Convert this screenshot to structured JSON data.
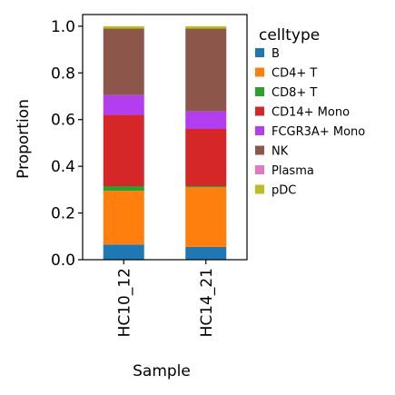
{
  "chart_data": {
    "type": "bar",
    "stacked": true,
    "categories": [
      "HC10_12",
      "HC14_21"
    ],
    "xlabel": "Sample",
    "ylabel": "Proportion",
    "ylim": [
      0,
      1.05
    ],
    "yticks": [
      "0.0",
      "0.2",
      "0.4",
      "0.6",
      "0.8",
      "1.0"
    ],
    "ytick_values": [
      0,
      0.2,
      0.4,
      0.6,
      0.8,
      1.0
    ],
    "grid": false,
    "legend": {
      "title": "celltype",
      "placement": "right"
    },
    "series": [
      {
        "name": "B",
        "color": "#1f77b4",
        "values": [
          0.065,
          0.055
        ]
      },
      {
        "name": "CD4+ T",
        "color": "#ff7f0e",
        "values": [
          0.23,
          0.255
        ]
      },
      {
        "name": "CD8+ T",
        "color": "#2ca02c",
        "values": [
          0.02,
          0.005
        ]
      },
      {
        "name": "CD14+ Mono",
        "color": "#d62728",
        "values": [
          0.305,
          0.245
        ]
      },
      {
        "name": "FCGR3A+ Mono",
        "color": "#b23ef0",
        "values": [
          0.085,
          0.075
        ]
      },
      {
        "name": "NK",
        "color": "#8c564b",
        "values": [
          0.285,
          0.355
        ]
      },
      {
        "name": "Plasma",
        "color": "#e377c2",
        "values": [
          0.0,
          0.0
        ]
      },
      {
        "name": "pDC",
        "color": "#bcbd22",
        "values": [
          0.01,
          0.01
        ]
      }
    ]
  }
}
